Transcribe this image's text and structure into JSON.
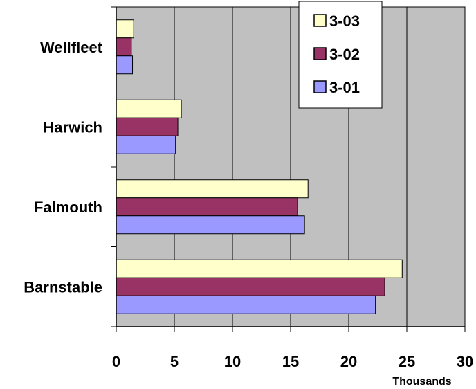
{
  "chart_data": {
    "type": "bar",
    "orientation": "horizontal",
    "categories": [
      "Wellfleet",
      "Harwich",
      "Falmouth",
      "Barnstable"
    ],
    "series": [
      {
        "name": "3-03",
        "color": "#ffffcc",
        "values": [
          1.5,
          5.6,
          16.5,
          24.6
        ]
      },
      {
        "name": "3-02",
        "color": "#993366",
        "values": [
          1.3,
          5.3,
          15.6,
          23.1
        ]
      },
      {
        "name": "3-01",
        "color": "#9999ff",
        "values": [
          1.4,
          5.1,
          16.2,
          22.3
        ]
      }
    ],
    "xlim": [
      0,
      30
    ],
    "xticks": [
      "0",
      "5",
      "10",
      "15",
      "20",
      "25",
      "30"
    ],
    "xunit": "Thousands",
    "plot_background": "#c0c0c0",
    "grid": true,
    "legend_position": "top-right"
  }
}
